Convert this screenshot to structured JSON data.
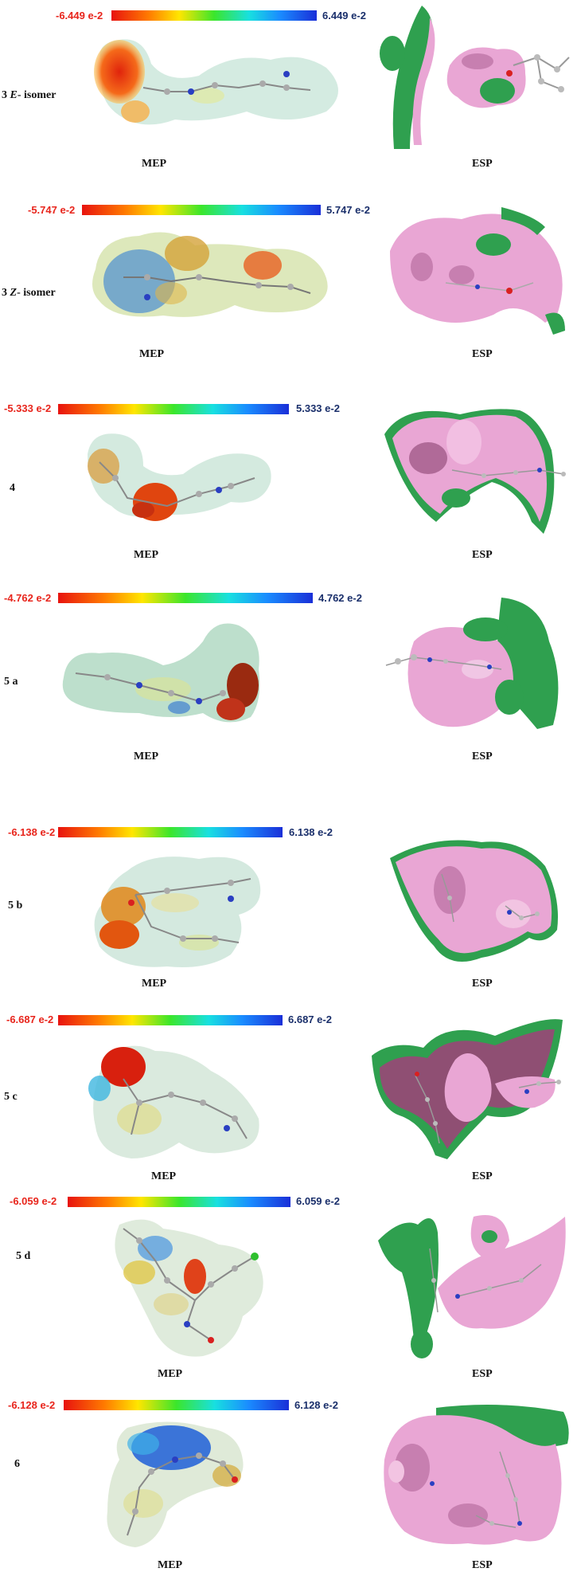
{
  "caption_left": "MEP",
  "caption_right": "ESP",
  "panels": [
    {
      "label_num": "3",
      "label_italic": "E",
      "label_rest": "- isomer",
      "min": "-6.449 e-2",
      "max": "6.449 e-2"
    },
    {
      "label_num": "3",
      "label_italic": "Z",
      "label_rest": "- isomer",
      "min": "-5.747 e-2",
      "max": "5.747 e-2"
    },
    {
      "label_num": "4",
      "label_italic": "",
      "label_rest": "",
      "min": "-5.333 e-2",
      "max": "5.333 e-2"
    },
    {
      "label_num": "5 a",
      "label_italic": "",
      "label_rest": "",
      "min": "-4.762 e-2",
      "max": "4.762 e-2"
    },
    {
      "label_num": "5 b",
      "label_italic": "",
      "label_rest": "",
      "min": "-6.138 e-2",
      "max": "6.138 e-2"
    },
    {
      "label_num": "5 c",
      "label_italic": "",
      "label_rest": "",
      "min": "-6.687 e-2",
      "max": "6.687 e-2"
    },
    {
      "label_num": "5 d",
      "label_italic": "",
      "label_rest": "",
      "min": "-6.059 e-2",
      "max": "6.059 e-2"
    },
    {
      "label_num": "6",
      "label_italic": "",
      "label_rest": "",
      "min": "-6.128 e-2",
      "max": "6.128 e-2"
    }
  ],
  "colors": {
    "negative": "#e8251c",
    "positive": "#1a2f6b",
    "esp_pink": "#e9a6d4",
    "esp_green": "#2fa04f"
  }
}
